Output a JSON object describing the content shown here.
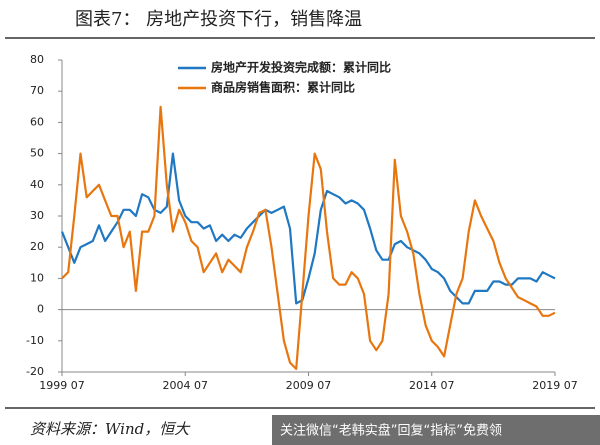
{
  "chart_data": {
    "type": "line",
    "title": "图表7： 房地产投资下行，销售降温",
    "source": "资料来源：Wind，恒大",
    "watermark": "关注微信“老韩实盘”回复“指标”免费领",
    "x": [
      1999.5,
      1999.75,
      2000,
      2000.25,
      2000.5,
      2000.75,
      2001,
      2001.25,
      2001.5,
      2001.75,
      2002,
      2002.25,
      2002.5,
      2002.75,
      2003,
      2003.25,
      2003.5,
      2003.75,
      2004,
      2004.25,
      2004.5,
      2004.75,
      2005,
      2005.25,
      2005.5,
      2005.75,
      2006,
      2006.25,
      2006.5,
      2006.75,
      2007,
      2007.25,
      2007.5,
      2007.75,
      2008,
      2008.25,
      2008.5,
      2008.75,
      2009,
      2009.25,
      2009.5,
      2009.75,
      2010,
      2010.25,
      2010.5,
      2010.75,
      2011,
      2011.25,
      2011.5,
      2011.75,
      2012,
      2012.25,
      2012.5,
      2012.75,
      2013,
      2013.25,
      2013.5,
      2013.75,
      2014,
      2014.25,
      2014.5,
      2014.75,
      2015,
      2015.25,
      2015.5,
      2015.75,
      2016,
      2016.25,
      2016.5,
      2016.75,
      2017,
      2017.25,
      2017.5,
      2017.75,
      2018,
      2018.25,
      2018.5,
      2018.75,
      2019,
      2019.25,
      2019.5
    ],
    "series": [
      {
        "name": "房地产开发投资完成额：累计同比",
        "color": "#1f78c1",
        "values": [
          25,
          20,
          15,
          20,
          21,
          22,
          27,
          22,
          25,
          28,
          32,
          32,
          30,
          37,
          36,
          32,
          31,
          33,
          50,
          35,
          30,
          28,
          28,
          26,
          27,
          22,
          24,
          22,
          24,
          23,
          26,
          28,
          30,
          32,
          31,
          32,
          33,
          26,
          2,
          3,
          10,
          18,
          32,
          38,
          37,
          36,
          34,
          35,
          34,
          32,
          26,
          19,
          16,
          16,
          21,
          22,
          20,
          19,
          18,
          16,
          13,
          12,
          10,
          6,
          4,
          2,
          2,
          6,
          6,
          6,
          9,
          9,
          8,
          8,
          10,
          10,
          10,
          9,
          12,
          11,
          10
        ]
      },
      {
        "name": "商品房销售面积：累计同比",
        "color": "#e8760f",
        "values": [
          10,
          12,
          30,
          50,
          36,
          38,
          40,
          35,
          30,
          30,
          20,
          25,
          6,
          25,
          25,
          30,
          65,
          40,
          25,
          32,
          28,
          22,
          20,
          12,
          15,
          18,
          12,
          16,
          14,
          12,
          20,
          25,
          31,
          32,
          20,
          5,
          -10,
          -17,
          -19,
          5,
          30,
          50,
          45,
          25,
          10,
          8,
          8,
          12,
          10,
          5,
          -10,
          -13,
          -10,
          5,
          48,
          30,
          25,
          18,
          5,
          -5,
          -10,
          -12,
          -15,
          -5,
          5,
          10,
          25,
          35,
          30,
          26,
          22,
          15,
          10,
          7,
          4,
          3,
          2,
          1,
          -2,
          -2,
          -1
        ]
      }
    ],
    "xlim": [
      1999.5,
      2019.5
    ],
    "xticks": [
      {
        "value": 1999.5,
        "label": "1999 07"
      },
      {
        "value": 2004.5,
        "label": "2004 07"
      },
      {
        "value": 2009.5,
        "label": "2009 07"
      },
      {
        "value": 2014.5,
        "label": "2014 07"
      },
      {
        "value": 2019.5,
        "label": "2019 07"
      }
    ],
    "ylim": [
      -20,
      80
    ],
    "yticks": [
      -20,
      -10,
      0,
      10,
      20,
      30,
      40,
      50,
      60,
      70,
      80
    ],
    "grid": false
  }
}
